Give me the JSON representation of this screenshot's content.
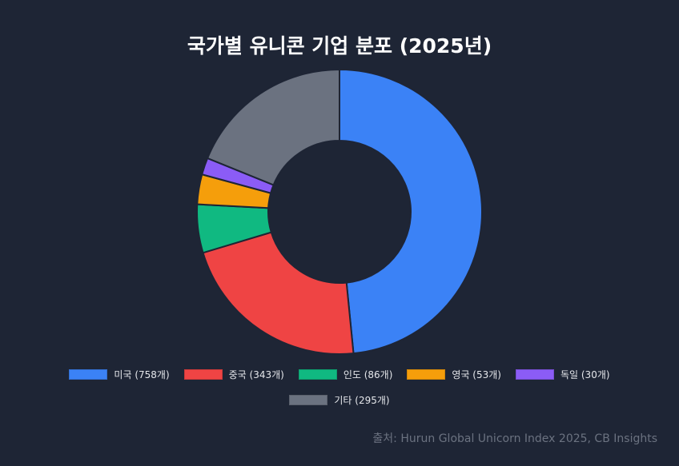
{
  "chart_data": {
    "type": "pie",
    "title": "국가별 유니콘 기업 분포 (2025년)",
    "categories": [
      "미국",
      "중국",
      "인도",
      "영국",
      "독일",
      "기타"
    ],
    "values": [
      758,
      343,
      86,
      53,
      30,
      295
    ],
    "legend_labels": [
      "미국 (758개)",
      "중국 (343개)",
      "인도 (86개)",
      "영국 (53개)",
      "독일 (30개)",
      "기타 (295개)"
    ],
    "colors": [
      "#3b82f6",
      "#ef4444",
      "#10b981",
      "#f59e0b",
      "#8b5cf6",
      "#6b7280"
    ],
    "legend_position": "bottom",
    "donut": true
  },
  "source_note": "출처: Hurun Global Unicorn Index 2025, CB Insights",
  "colors": {
    "background": "#1e2535",
    "title": "#ffffff",
    "legend_text": "#e5e7eb",
    "source_text": "#6b7280",
    "slice_border": "#1e2535"
  }
}
